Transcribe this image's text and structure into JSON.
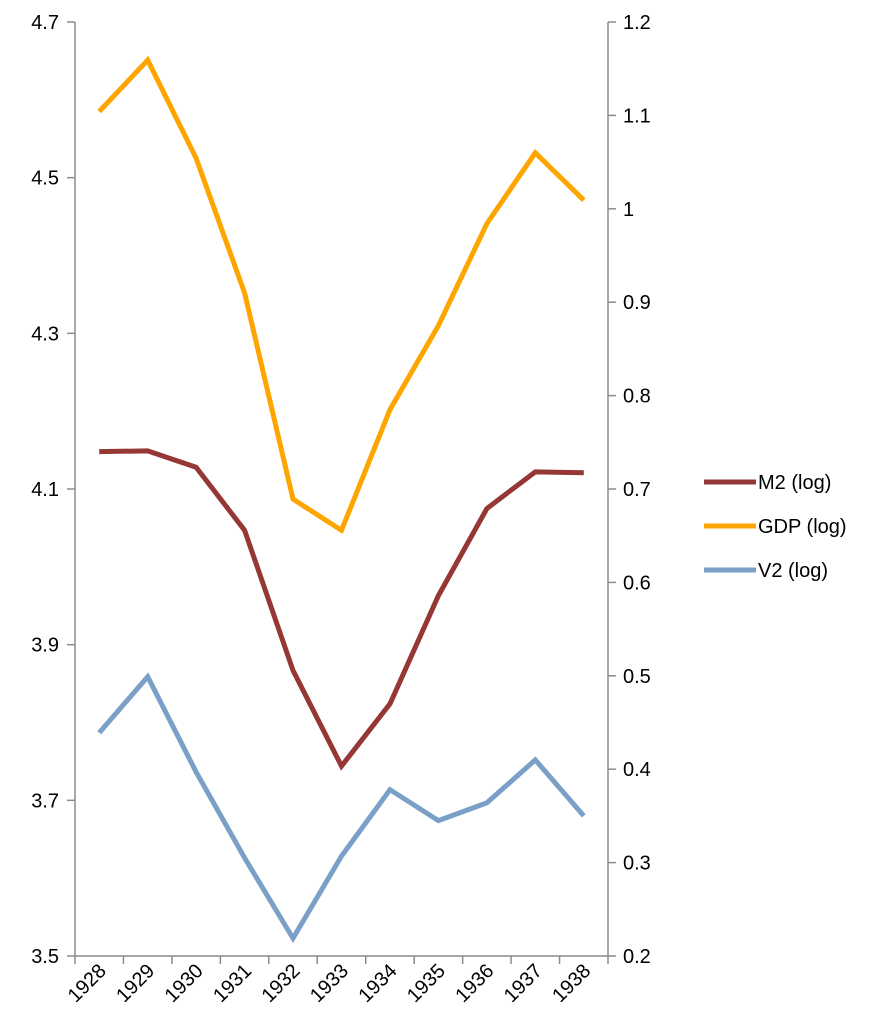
{
  "chart_data": {
    "type": "line",
    "title": "",
    "xlabel": "",
    "ylabel": "",
    "y2label": "",
    "categories": [
      "1928",
      "1929",
      "1930",
      "1931",
      "1932",
      "1933",
      "1934",
      "1935",
      "1936",
      "1937",
      "1938"
    ],
    "ylim": [
      3.5,
      4.7
    ],
    "y_ticks": [
      "3.5",
      "3.7",
      "3.9",
      "4.1",
      "4.3",
      "4.5",
      "4.7"
    ],
    "y2lim": [
      0.2,
      1.2
    ],
    "y2_ticks": [
      "0.2",
      "0.3",
      "0.4",
      "0.5",
      "0.6",
      "0.7",
      "0.8",
      "0.9",
      "1",
      "1.1",
      "1.2"
    ],
    "grid": false,
    "legend_position": "right",
    "series": [
      {
        "name": "M2 (log)",
        "axis": "left",
        "color": "#953735",
        "values": [
          4.148,
          4.149,
          4.128,
          4.047,
          3.867,
          3.744,
          3.824,
          3.963,
          4.075,
          4.122,
          4.121
        ]
      },
      {
        "name": "GDP (log)",
        "axis": "left",
        "color": "#ffa500",
        "values": [
          4.585,
          4.651,
          4.525,
          4.352,
          4.087,
          4.047,
          4.202,
          4.31,
          4.441,
          4.532,
          4.471
        ]
      },
      {
        "name": "V2 (log)",
        "axis": "right",
        "color": "#7ba0c8",
        "values": [
          0.439,
          0.499,
          0.397,
          0.305,
          0.219,
          0.307,
          0.378,
          0.345,
          0.364,
          0.41,
          0.35
        ]
      }
    ]
  }
}
